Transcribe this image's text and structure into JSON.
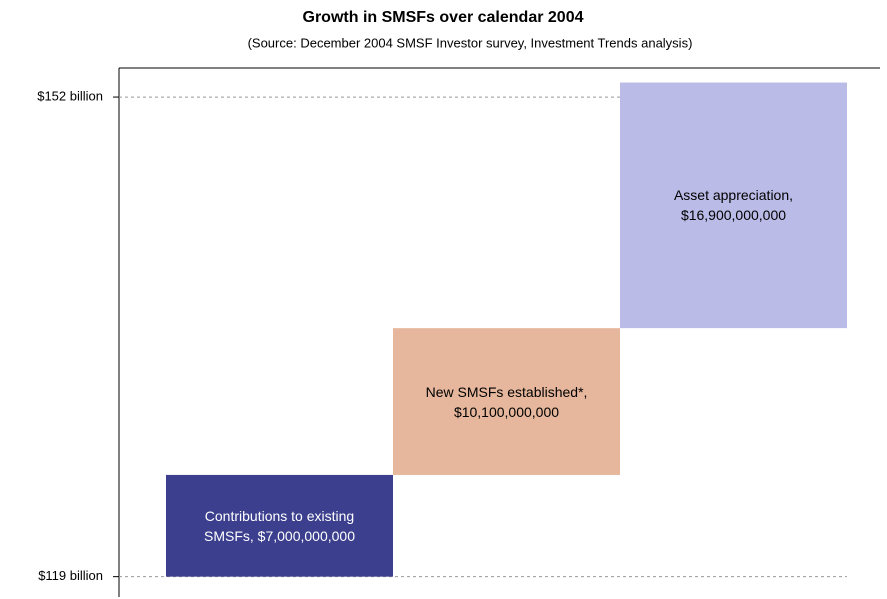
{
  "chart_data": {
    "type": "waterfall",
    "title": "Growth in SMSFs over calendar 2004",
    "subtitle": "(Source: December 2004 SMSF Investor survey, Investment Trends analysis)",
    "values": [
      7,
      10.1,
      16.9
    ],
    "value_labels": [
      "Contributions to existing SMSFs, $7,000,000,000",
      "New SMSFs established*, $10,100,000,000",
      "Asset appreciation, $16,900,000,000"
    ],
    "colors": [
      "#3b3f8e",
      "#e6b79c",
      "#babbe7"
    ],
    "ylim": [
      117.6,
      154
    ],
    "yticks": [
      {
        "value": 119,
        "label": "$119 billion"
      },
      {
        "value": 152,
        "label": "$152 billion"
      }
    ],
    "grid": true
  }
}
